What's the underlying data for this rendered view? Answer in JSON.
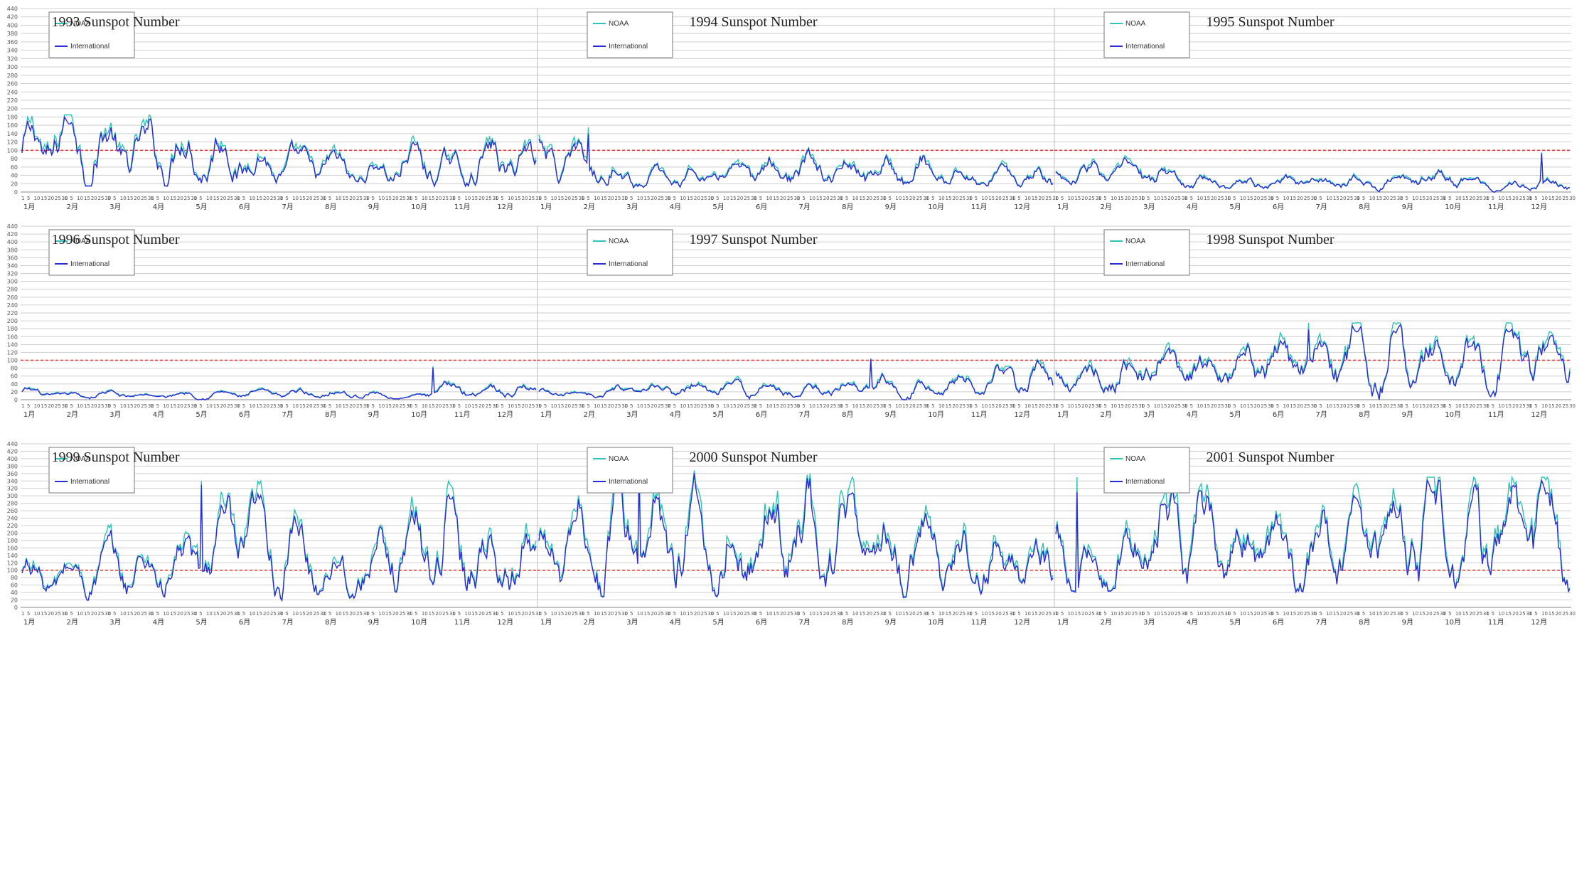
{
  "chart_data": [
    {
      "type": "line",
      "panel": "1993-1995",
      "y_ticks": [
        0,
        20,
        40,
        60,
        80,
        100,
        120,
        140,
        160,
        180,
        200,
        220,
        240,
        260,
        280,
        300,
        320,
        340,
        360,
        380,
        400,
        420,
        440
      ],
      "ylim": [
        0,
        440
      ],
      "reference_line": 100,
      "months": [
        "1月",
        "2月",
        "3月",
        "4月",
        "5月",
        "6月",
        "7月",
        "8月",
        "9月",
        "10月",
        "11月",
        "12月"
      ],
      "legend": [
        "NOAA",
        "International"
      ],
      "colors": {
        "NOAA": "#2ec4b6",
        "International": "#2b2bd6",
        "reference": "#e03030"
      },
      "years": [
        {
          "title": "1993 Sunspot Number",
          "monthly_mean": [
            95,
            145,
            110,
            95,
            110,
            90,
            60,
            65,
            40,
            80,
            55,
            80
          ],
          "approx_min": 15,
          "approx_max": 185
        },
        {
          "title": "1994 Sunspot Number",
          "monthly_mean": [
            95,
            65,
            45,
            35,
            40,
            50,
            55,
            45,
            50,
            60,
            35,
            40
          ],
          "approx_min": 0,
          "approx_max": 155
        },
        {
          "title": "1995 Sunspot Number",
          "monthly_mean": [
            35,
            50,
            45,
            30,
            20,
            30,
            25,
            25,
            25,
            40,
            20,
            20
          ],
          "approx_min": 0,
          "approx_max": 95
        }
      ]
    },
    {
      "type": "line",
      "panel": "1996-1998",
      "y_ticks": [
        0,
        20,
        40,
        60,
        80,
        100,
        120,
        140,
        160,
        180,
        200,
        220,
        240,
        260,
        280,
        300,
        320,
        340,
        360,
        380,
        400,
        420,
        440
      ],
      "ylim": [
        0,
        440
      ],
      "reference_line": 100,
      "months": [
        "1月",
        "2月",
        "3月",
        "4月",
        "5月",
        "6月",
        "7月",
        "8月",
        "9月",
        "10月",
        "11月",
        "12月"
      ],
      "legend": [
        "NOAA",
        "International"
      ],
      "colors": {
        "NOAA": "#2ec4b6",
        "International": "#2b2bd6",
        "reference": "#e03030"
      },
      "years": [
        {
          "title": "1996 Sunspot Number",
          "monthly_mean": [
            20,
            10,
            15,
            10,
            15,
            15,
            15,
            20,
            15,
            5,
            30,
            25
          ],
          "approx_min": 0,
          "approx_max": 85
        },
        {
          "title": "1997 Sunspot Number",
          "monthly_mean": [
            15,
            15,
            20,
            25,
            30,
            30,
            25,
            30,
            45,
            35,
            45,
            55
          ],
          "approx_min": 0,
          "approx_max": 105
        },
        {
          "title": "1998 Sunspot Number",
          "monthly_mean": [
            50,
            60,
            80,
            80,
            70,
            100,
            100,
            120,
            130,
            90,
            100,
            120
          ],
          "approx_min": 0,
          "approx_max": 195
        }
      ]
    },
    {
      "type": "line",
      "panel": "1999-2001",
      "y_ticks": [
        0,
        20,
        40,
        60,
        80,
        100,
        120,
        140,
        160,
        180,
        200,
        220,
        240,
        260,
        280,
        300,
        320,
        340,
        360,
        380,
        400,
        420,
        440
      ],
      "ylim": [
        0,
        440
      ],
      "reference_line": 100,
      "months": [
        "1月",
        "2月",
        "3月",
        "4月",
        "5月",
        "6月",
        "7月",
        "8月",
        "9月",
        "10月",
        "11月",
        "12月"
      ],
      "legend": [
        "NOAA",
        "International"
      ],
      "colors": {
        "NOAA": "#2ec4b6",
        "International": "#2b2bd6",
        "reference": "#e03030"
      },
      "years": [
        {
          "title": "1999 Sunspot Number",
          "monthly_mean": [
            90,
            80,
            110,
            100,
            130,
            190,
            160,
            120,
            100,
            170,
            200,
            140
          ],
          "approx_min": 20,
          "approx_max": 340
        },
        {
          "title": "2000 Sunspot Number",
          "monthly_mean": [
            130,
            170,
            190,
            210,
            180,
            200,
            220,
            190,
            150,
            150,
            140,
            140
          ],
          "approx_min": 30,
          "approx_max": 400
        },
        {
          "title": "2001 Sunspot Number",
          "monthly_mean": [
            140,
            130,
            160,
            190,
            150,
            160,
            150,
            170,
            200,
            240,
            200,
            210
          ],
          "approx_min": 45,
          "approx_max": 350
        }
      ]
    }
  ]
}
